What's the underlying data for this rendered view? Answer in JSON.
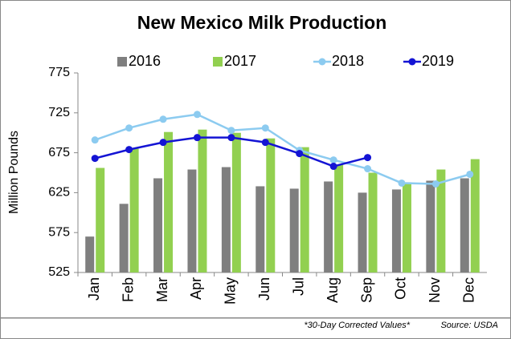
{
  "chart_data": {
    "type": "combo",
    "title": "New Mexico Milk Production",
    "y_label": "Million Pounds",
    "notes": [
      "*30-Day Corrected Values*",
      "Source: USDA"
    ],
    "categories": [
      "Jan",
      "Feb",
      "Mar",
      "Apr",
      "May",
      "Jun",
      "Jul",
      "Aug",
      "Sep",
      "Oct",
      "Nov",
      "Dec"
    ],
    "series": [
      {
        "name": "2016",
        "type": "bar",
        "color": "#7f7f7f",
        "values": [
          570,
          611,
          643,
          654,
          657,
          633,
          630,
          639,
          625,
          629,
          640,
          643
        ]
      },
      {
        "name": "2017",
        "type": "bar",
        "color": "#92d050",
        "values": [
          656,
          680,
          701,
          704,
          700,
          693,
          682,
          660,
          650,
          638,
          654,
          667
        ]
      },
      {
        "name": "2018",
        "type": "line",
        "color": "#8ccbf0",
        "values": [
          691,
          706,
          717,
          723,
          703,
          706,
          678,
          666,
          655,
          637,
          636,
          648
        ]
      },
      {
        "name": "2019",
        "type": "line",
        "color": "#1414d4",
        "values": [
          668,
          679,
          688,
          694,
          694,
          688,
          674,
          658,
          669,
          null,
          null,
          null
        ]
      }
    ],
    "ylim": [
      525,
      775
    ],
    "yticks": [
      525,
      575,
      625,
      675,
      725,
      775
    ],
    "grid": false
  }
}
